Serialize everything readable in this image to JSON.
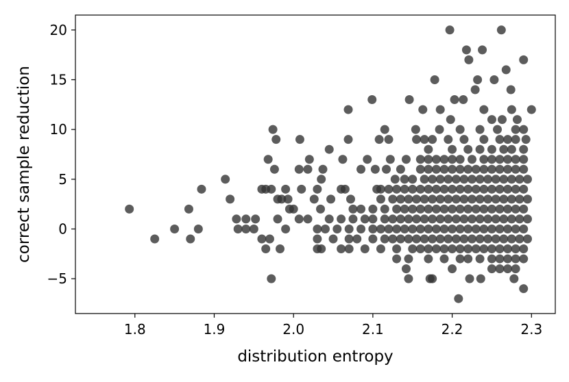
{
  "chart_data": {
    "type": "scatter",
    "title": "",
    "xlabel": "distribution entropy",
    "ylabel": "correct sample reduction",
    "xlim": [
      1.725,
      2.33
    ],
    "ylim": [
      -8.5,
      21.5
    ],
    "xticks": [
      "1.8",
      "1.9",
      "2.0",
      "2.1",
      "2.2",
      "2.3"
    ],
    "xtick_values": [
      1.8,
      1.9,
      2.0,
      2.1,
      2.2,
      2.3
    ],
    "yticks": [
      "−5",
      "0",
      "5",
      "10",
      "15",
      "20"
    ],
    "ytick_values": [
      -5,
      0,
      5,
      10,
      15,
      20
    ],
    "grid": false,
    "marker_color": "#333333",
    "marker_alpha": 0.8,
    "rows": [
      {
        "y": 20,
        "x": [
          2.197,
          2.262
        ]
      },
      {
        "y": 18,
        "x": [
          2.218,
          2.238
        ]
      },
      {
        "y": 17,
        "x": [
          2.221,
          2.29
        ]
      },
      {
        "y": 16,
        "x": [
          2.268
        ]
      },
      {
        "y": 15,
        "x": [
          2.178,
          2.232,
          2.253
        ]
      },
      {
        "y": 14,
        "x": [
          2.229,
          2.274
        ]
      },
      {
        "y": 13,
        "x": [
          2.099,
          2.146,
          2.203,
          2.214
        ]
      },
      {
        "y": 12,
        "x": [
          2.069,
          2.163,
          2.185,
          2.24,
          2.275,
          2.3
        ]
      },
      {
        "y": 11,
        "x": [
          2.198,
          2.25,
          2.263,
          2.282
        ]
      },
      {
        "y": 10,
        "x": [
          1.974,
          2.115,
          2.154,
          2.184,
          2.21,
          2.235,
          2.257,
          2.28,
          2.29
        ]
      },
      {
        "y": 9,
        "x": [
          1.978,
          2.008,
          2.069,
          2.108,
          2.12,
          2.155,
          2.165,
          2.175,
          2.195,
          2.215,
          2.24,
          2.26,
          2.27,
          2.28,
          2.293
        ]
      },
      {
        "y": 8,
        "x": [
          2.045,
          2.17,
          2.2,
          2.22,
          2.235,
          2.25,
          2.265,
          2.275,
          2.29
        ]
      },
      {
        "y": 7,
        "x": [
          1.968,
          2.02,
          2.062,
          2.093,
          2.122,
          2.142,
          2.16,
          2.17,
          2.18,
          2.19,
          2.2,
          2.21,
          2.225,
          2.24,
          2.25,
          2.26,
          2.27,
          2.28,
          2.29
        ]
      },
      {
        "y": 6,
        "x": [
          1.976,
          2.007,
          2.018,
          2.037,
          2.085,
          2.103,
          2.117,
          2.135,
          2.16,
          2.17,
          2.18,
          2.19,
          2.2,
          2.21,
          2.22,
          2.23,
          2.24,
          2.25,
          2.26,
          2.27,
          2.28,
          2.29
        ]
      },
      {
        "y": 5,
        "x": [
          1.914,
          2.035,
          2.128,
          2.14,
          2.15,
          2.165,
          2.175,
          2.185,
          2.195,
          2.205,
          2.215,
          2.225,
          2.235,
          2.245,
          2.255,
          2.265,
          2.275,
          2.285,
          2.295
        ]
      },
      {
        "y": 4,
        "x": [
          1.884,
          1.96,
          1.965,
          1.972,
          1.99,
          2.01,
          2.03,
          2.06,
          2.065,
          2.105,
          2.11,
          2.12,
          2.13,
          2.14,
          2.15,
          2.16,
          2.17,
          2.18,
          2.19,
          2.2,
          2.21,
          2.22,
          2.23,
          2.24,
          2.25,
          2.26,
          2.27,
          2.28,
          2.29
        ]
      },
      {
        "y": 3,
        "x": [
          1.92,
          1.98,
          1.985,
          1.993,
          2.026,
          2.047,
          2.072,
          2.11,
          2.125,
          2.135,
          2.145,
          2.155,
          2.165,
          2.175,
          2.185,
          2.195,
          2.205,
          2.215,
          2.225,
          2.235,
          2.245,
          2.255,
          2.265,
          2.275,
          2.285,
          2.295
        ]
      },
      {
        "y": 2,
        "x": [
          1.793,
          1.868,
          1.995,
          2.0,
          2.034,
          2.075,
          2.085,
          2.1,
          2.115,
          2.13,
          2.14,
          2.15,
          2.16,
          2.17,
          2.18,
          2.19,
          2.2,
          2.21,
          2.22,
          2.23,
          2.24,
          2.25,
          2.26,
          2.27,
          2.28,
          2.29
        ]
      },
      {
        "y": 1,
        "x": [
          1.928,
          1.94,
          1.952,
          1.98,
          2.007,
          2.018,
          2.045,
          2.06,
          2.075,
          2.09,
          2.1,
          2.115,
          2.125,
          2.135,
          2.145,
          2.155,
          2.165,
          2.175,
          2.185,
          2.195,
          2.205,
          2.215,
          2.225,
          2.235,
          2.245,
          2.255,
          2.265,
          2.275,
          2.285,
          2.295
        ]
      },
      {
        "y": 0,
        "x": [
          1.85,
          1.88,
          1.93,
          1.94,
          1.95,
          1.99,
          2.03,
          2.04,
          2.055,
          2.07,
          2.085,
          2.1,
          2.11,
          2.12,
          2.13,
          2.14,
          2.15,
          2.16,
          2.17,
          2.18,
          2.19,
          2.2,
          2.21,
          2.22,
          2.23,
          2.24,
          2.25,
          2.26,
          2.27,
          2.28,
          2.29
        ]
      },
      {
        "y": -1,
        "x": [
          1.825,
          1.87,
          1.96,
          1.97,
          2.03,
          2.05,
          2.07,
          2.08,
          2.1,
          2.115,
          2.125,
          2.135,
          2.145,
          2.155,
          2.165,
          2.175,
          2.185,
          2.195,
          2.205,
          2.215,
          2.225,
          2.235,
          2.245,
          2.255,
          2.265,
          2.275,
          2.285,
          2.295
        ]
      },
      {
        "y": -2,
        "x": [
          1.965,
          1.983,
          2.03,
          2.035,
          2.06,
          2.07,
          2.09,
          2.11,
          2.13,
          2.15,
          2.16,
          2.17,
          2.18,
          2.19,
          2.2,
          2.21,
          2.22,
          2.23,
          2.24,
          2.25,
          2.26,
          2.27,
          2.28,
          2.29
        ]
      },
      {
        "y": -3,
        "x": [
          2.13,
          2.145,
          2.17,
          2.19,
          2.21,
          2.22,
          2.235,
          2.25,
          2.26,
          2.27,
          2.28,
          2.29
        ]
      },
      {
        "y": -4,
        "x": [
          2.142,
          2.2,
          2.25,
          2.26,
          2.27,
          2.28
        ]
      },
      {
        "y": -5,
        "x": [
          1.972,
          2.145,
          2.172,
          2.175,
          2.222,
          2.236,
          2.278
        ]
      },
      {
        "y": -6,
        "x": [
          2.29
        ]
      },
      {
        "y": -7,
        "x": [
          2.208
        ]
      }
    ]
  }
}
